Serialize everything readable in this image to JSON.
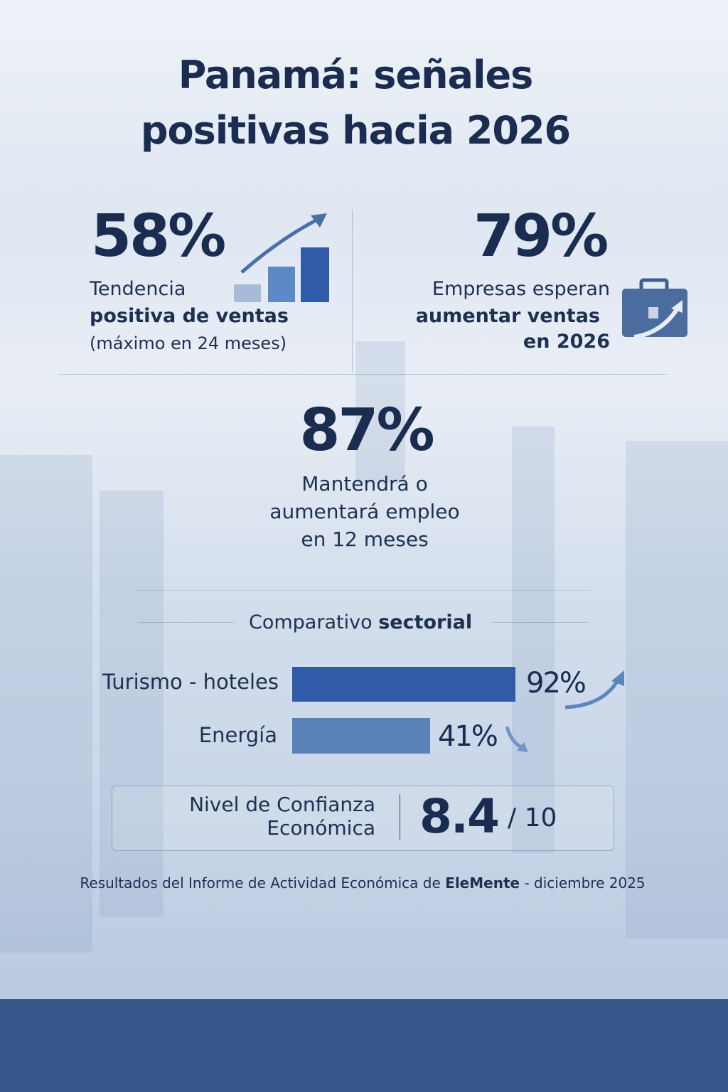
{
  "title": {
    "line1": "Panamá: señales",
    "line2": "positivas hacia 2026"
  },
  "stat1": {
    "value": "58%",
    "line1": "Tendencia",
    "line2": "positiva de ventas",
    "line3": "(máximo en 24 meses)",
    "icon": "bar-chart-growth-icon"
  },
  "stat2": {
    "value": "79%",
    "line1": "Empresas esperan",
    "line2": "aumentar ventas",
    "line3": "en 2026",
    "icon": "briefcase-growth-icon"
  },
  "stat3": {
    "value": "87%",
    "line1": "Mantendrá o",
    "line2": "aumentará empleo",
    "line3": "en 12 meses"
  },
  "sector": {
    "heading_regular": "Comparativo",
    "heading_bold": "sectorial",
    "items": [
      {
        "label": "Turismo - hoteles",
        "value": 92,
        "value_label": "92%",
        "trend": "up",
        "color": "#2f5ba8"
      },
      {
        "label": "Energía",
        "value": 41,
        "value_label": "41%",
        "trend": "down",
        "color": "#5b82b8"
      }
    ]
  },
  "confidence": {
    "label_line1": "Nivel de Confianza",
    "label_line2": "Económica",
    "value": "8.4",
    "scale": "/ 10"
  },
  "footer": {
    "prefix": "Resultados del Informe de Actividad Económica de",
    "brand": "EleMente",
    "suffix": "- diciembre 2025"
  },
  "colors": {
    "text": "#1a2d50",
    "band": "#38578a",
    "accent": "#2f5ba8"
  }
}
